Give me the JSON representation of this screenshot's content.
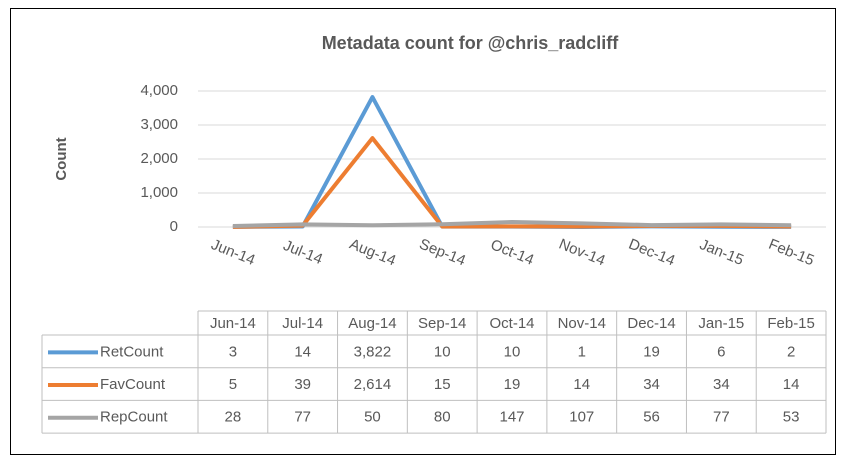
{
  "chart_data": {
    "type": "line",
    "title": "Metadata count for @chris_radcliff",
    "y_label": "Count",
    "categories": [
      "Jun-14",
      "Jul-14",
      "Aug-14",
      "Sep-14",
      "Oct-14",
      "Nov-14",
      "Dec-14",
      "Jan-15",
      "Feb-15"
    ],
    "series": [
      {
        "name": "RetCount",
        "color": "#5b9bd5",
        "values": [
          3,
          14,
          3822,
          10,
          10,
          1,
          19,
          6,
          2
        ],
        "value_labels": [
          "3",
          "14",
          "3,822",
          "10",
          "10",
          "1",
          "19",
          "6",
          "2"
        ]
      },
      {
        "name": "FavCount",
        "color": "#ed7d31",
        "values": [
          5,
          39,
          2614,
          15,
          19,
          14,
          34,
          34,
          14
        ],
        "value_labels": [
          "5",
          "39",
          "2,614",
          "15",
          "19",
          "14",
          "34",
          "34",
          "14"
        ]
      },
      {
        "name": "RepCount",
        "color": "#a5a5a5",
        "values": [
          28,
          77,
          50,
          80,
          147,
          107,
          56,
          77,
          53
        ],
        "value_labels": [
          "28",
          "77",
          "50",
          "80",
          "147",
          "107",
          "56",
          "77",
          "53"
        ]
      }
    ],
    "ylim": [
      0,
      4000
    ],
    "yticks": [
      0,
      {
        "value": 1000,
        "label": "1,000"
      },
      {
        "value": 2000,
        "label": "2,000"
      },
      {
        "value": 3000,
        "label": "3,000"
      },
      {
        "value": 4000,
        "label": "4,000"
      }
    ],
    "grid": true
  }
}
